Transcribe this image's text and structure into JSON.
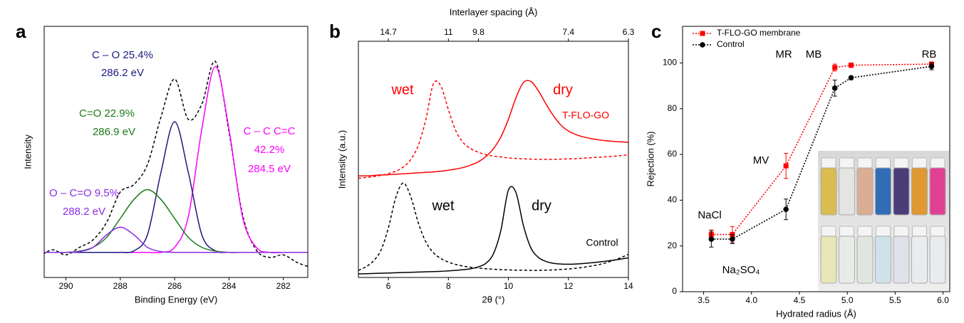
{
  "chart_data": [
    {
      "type": "line",
      "panel_label": "a",
      "xlabel": "Binding Energy (eV)",
      "ylabel": "Intensity",
      "xlim": [
        290.8,
        281.1
      ],
      "xticks": [
        290,
        288,
        286,
        284,
        282
      ],
      "ylim": [
        0,
        100
      ],
      "x": [
        291,
        290.5,
        290,
        289.5,
        289,
        288.5,
        288,
        287.5,
        287,
        286.5,
        286,
        285.5,
        285,
        284.5,
        284,
        283.5,
        283,
        282.5,
        282,
        281.5,
        281
      ],
      "series": [
        {
          "color": "#000000",
          "style": "dashed",
          "values": [
            8,
            11,
            9,
            12,
            15,
            22,
            34,
            37,
            45,
            64,
            79,
            63,
            69,
            86,
            58,
            25,
            11,
            8,
            9,
            6,
            4
          ]
        },
        {
          "color": "#ff00ff",
          "style": "solid",
          "values": [
            10,
            10,
            10,
            10,
            10,
            10,
            10,
            10,
            10,
            10,
            12,
            24,
            59,
            84,
            59,
            24,
            12,
            10,
            10,
            10,
            10
          ]
        },
        {
          "color": "#1a1a80",
          "style": "solid",
          "values": [
            10,
            10,
            10,
            10,
            10,
            10,
            10,
            10.6,
            17,
            42,
            62,
            42,
            17,
            10.6,
            10,
            10,
            10,
            10,
            10,
            10,
            10
          ]
        },
        {
          "color": "#1a7a1a",
          "style": "solid",
          "values": [
            10,
            10,
            10,
            10.5,
            12,
            16,
            23.5,
            31,
            35,
            31,
            23.5,
            16,
            12,
            10.5,
            10,
            10,
            10,
            10,
            10,
            10,
            10
          ]
        },
        {
          "color": "#8a2be2",
          "style": "solid",
          "values": [
            10,
            10,
            10,
            10.3,
            12,
            17,
            20,
            17,
            12,
            10.3,
            10,
            10,
            10,
            10,
            10,
            10,
            10,
            10,
            10,
            10,
            10
          ]
        }
      ],
      "annotations": [
        {
          "text": "C – O 25.4%",
          "color": "#1a1a80"
        },
        {
          "text": "286.2 eV",
          "color": "#1a1a80"
        },
        {
          "text": "C=O 22.9%",
          "color": "#1a7a1a"
        },
        {
          "text": "286.9 eV",
          "color": "#1a7a1a"
        },
        {
          "text": "C – C C=C",
          "color": "#ff00ff"
        },
        {
          "text": "42.2%",
          "color": "#ff00ff"
        },
        {
          "text": "284.5 eV",
          "color": "#ff00ff"
        },
        {
          "text": "O – C=O 9.5%",
          "color": "#8a2be2"
        },
        {
          "text": "288.2 eV",
          "color": "#8a2be2"
        }
      ]
    },
    {
      "type": "line",
      "panel_label": "b",
      "xlabel": "2θ (°)",
      "ylabel": "Intensity (a.u.)",
      "x2label": "Interlayer spacing (Å)",
      "xlim": [
        5,
        14
      ],
      "xticks": [
        6,
        8,
        10,
        12,
        14
      ],
      "ylim": [
        0,
        100
      ],
      "x2ticks": [
        {
          "value": 6,
          "label": "14.7"
        },
        {
          "value": 8,
          "label": "11"
        },
        {
          "value": 9,
          "label": "9.8"
        },
        {
          "value": 12,
          "label": "7.4"
        },
        {
          "value": 14,
          "label": "6.3"
        }
      ],
      "x": [
        5,
        5.25,
        5.5,
        5.75,
        6,
        6.25,
        6.5,
        6.75,
        7,
        7.25,
        7.5,
        7.75,
        8,
        8.25,
        8.5,
        8.75,
        9,
        9.25,
        9.5,
        9.75,
        10,
        10.25,
        10.5,
        10.75,
        11,
        11.25,
        11.5,
        11.75,
        12,
        12.25,
        12.5,
        12.75,
        13,
        13.25,
        13.5,
        13.75,
        14
      ],
      "series": [
        {
          "color": "#ff0000",
          "style": "solid",
          "values": [
            43,
            43,
            43.2,
            43.4,
            43.5,
            43.7,
            43.9,
            44.1,
            44.3,
            44.5,
            44.7,
            45,
            45.4,
            45.9,
            46.6,
            47.6,
            49,
            51.2,
            54.5,
            59.5,
            67,
            76,
            82.5,
            83,
            79,
            73.5,
            68.5,
            64.5,
            62,
            60.5,
            59.5,
            58.8,
            58.3,
            57.9,
            57.6,
            57.4,
            57.2
          ]
        },
        {
          "color": "#ff0000",
          "style": "dashed",
          "values": [
            42,
            42.3,
            42.7,
            43.2,
            44,
            45,
            46.8,
            50,
            56,
            67,
            82,
            81,
            71,
            62,
            57,
            54.5,
            53,
            52,
            51.4,
            51,
            50.6,
            50.4,
            50.2,
            50.1,
            50,
            50,
            50,
            50.1,
            50.2,
            50.3,
            50.5,
            50.7,
            50.9,
            51.1,
            51.3,
            51.6,
            51.9
          ]
        },
        {
          "color": "#000000",
          "style": "solid",
          "values": [
            1.5,
            1.6,
            1.7,
            1.8,
            1.9,
            2,
            2.1,
            2.2,
            2.3,
            2.4,
            2.5,
            2.6,
            2.8,
            3,
            3.3,
            3.7,
            4.5,
            6,
            10,
            20,
            37,
            36,
            22,
            12.5,
            8.5,
            6.8,
            6,
            5.7,
            5.6,
            5.7,
            5.9,
            6.2,
            6.5,
            6.9,
            7.3,
            7.8,
            8.3
          ]
        },
        {
          "color": "#000000",
          "style": "dashed",
          "values": [
            3,
            4.5,
            7,
            11.5,
            21,
            34,
            40,
            34,
            23,
            15,
            10.5,
            8,
            6.5,
            5.5,
            4.8,
            4.3,
            4,
            3.7,
            3.5,
            3.3,
            3.2,
            3.1,
            3.1,
            3,
            3,
            3.1,
            3.2,
            3.4,
            3.6,
            3.9,
            4.3,
            4.8,
            5.4,
            6.2,
            7.2,
            8.4,
            9.8
          ]
        }
      ],
      "annotations": [
        {
          "text": "wet",
          "color": "#ff0000"
        },
        {
          "text": "dry",
          "color": "#ff0000"
        },
        {
          "text": "T-FLO-GO",
          "color": "#ff0000"
        },
        {
          "text": "wet",
          "color": "#000000"
        },
        {
          "text": "dry",
          "color": "#000000"
        },
        {
          "text": "Control",
          "color": "#000000"
        }
      ]
    },
    {
      "type": "line",
      "panel_label": "c",
      "xlabel": "Hydrated radius (Å)",
      "ylabel": "Rejection (%)",
      "xlim": [
        3.28,
        6.07
      ],
      "ylim": [
        0,
        116
      ],
      "xticks": [
        3.5,
        {
          "value": 4,
          "label": "4.0"
        },
        4.5,
        {
          "value": 5,
          "label": "5.0"
        },
        5.5,
        {
          "value": 6,
          "label": "6.0"
        }
      ],
      "yticks": [
        0,
        20,
        40,
        60,
        80,
        100
      ],
      "legend": "upper left",
      "x": [
        3.58,
        3.8,
        4.36,
        4.87,
        5.04,
        5.88
      ],
      "series": [
        {
          "name": "T-FLO-GO membrane",
          "color": "#ff0000",
          "style": "dotted",
          "marker": "square",
          "values": [
            25,
            25,
            55,
            98,
            99,
            99.5
          ],
          "errors": [
            2,
            3.5,
            5.5,
            1.5,
            1,
            0.5
          ]
        },
        {
          "name": "Control",
          "color": "#000000",
          "style": "dotted",
          "marker": "circle",
          "values": [
            23,
            23,
            36,
            89,
            93.5,
            98.5
          ],
          "errors": [
            3.5,
            2,
            4.5,
            3.5,
            0.5,
            1.5
          ]
        }
      ],
      "annotations": [
        {
          "text": "NaCl",
          "color": "#000000"
        },
        {
          "text": "Na₂SO₄",
          "color": "#000000"
        },
        {
          "text": "MV",
          "color": "#000000"
        },
        {
          "text": "MR",
          "color": "#000000"
        },
        {
          "text": "MB",
          "color": "#000000"
        },
        {
          "text": "RB",
          "color": "#000000"
        }
      ]
    }
  ]
}
